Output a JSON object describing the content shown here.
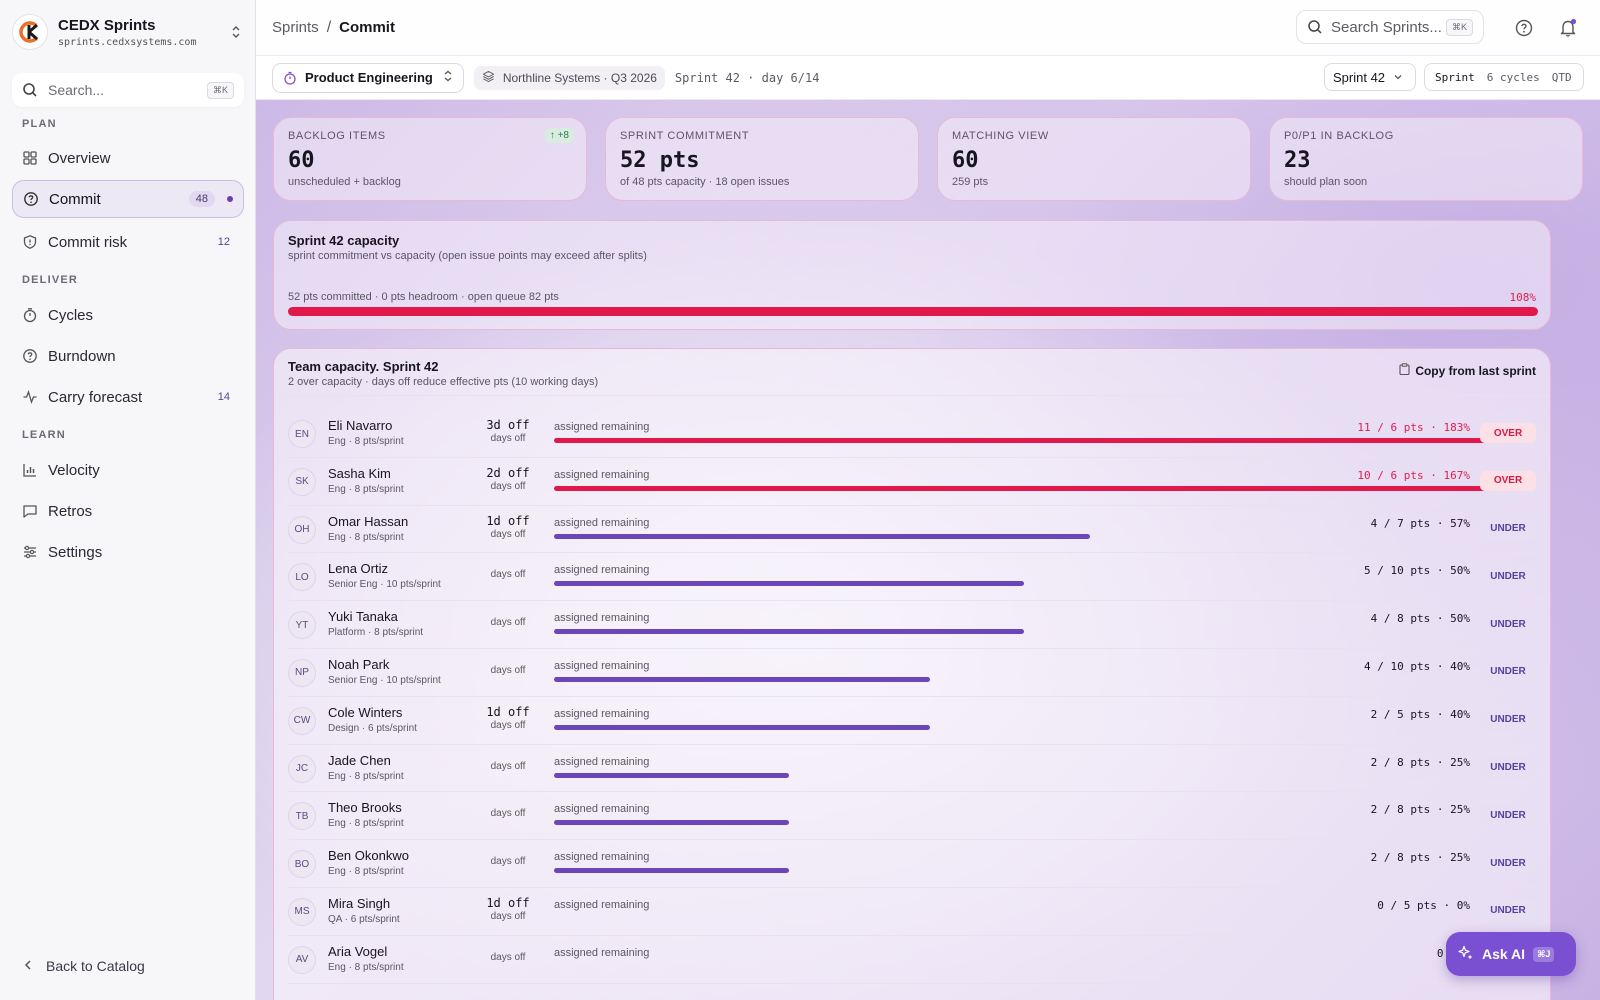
{
  "app": {
    "name": "CEDX Sprints",
    "url": "sprints.cedxsystems.com"
  },
  "sidebar": {
    "search_placeholder": "Search...",
    "search_shortcut": "⌘K",
    "sections": [
      {
        "label": "PLAN"
      },
      {
        "label": "DELIVER"
      },
      {
        "label": "LEARN"
      }
    ],
    "items": [
      {
        "label": "Overview",
        "icon": "grid-icon"
      },
      {
        "label": "Commit",
        "icon": "help-circle-icon",
        "count": "48",
        "active": true
      },
      {
        "label": "Commit risk",
        "icon": "shield-icon",
        "count": "12"
      },
      {
        "label": "Cycles",
        "icon": "timer-icon"
      },
      {
        "label": "Burndown",
        "icon": "help-circle-icon"
      },
      {
        "label": "Carry forecast",
        "icon": "activity-icon",
        "count": "14"
      },
      {
        "label": "Velocity",
        "icon": "bar-chart-icon"
      },
      {
        "label": "Retros",
        "icon": "message-square-icon"
      },
      {
        "label": "Settings",
        "icon": "sliders-icon"
      }
    ],
    "back_label": "Back to Catalog"
  },
  "topbar": {
    "breadcrumb_root": "Sprints",
    "breadcrumb_sep": "/",
    "breadcrumb_current": "Commit",
    "search_placeholder": "Search Sprints...",
    "search_shortcut": "⌘K"
  },
  "filterbar": {
    "team": "Product Engineering",
    "org": "Northline Systems · Q3 2026",
    "sprint_day": "Sprint 42 · day 6/14",
    "sprint_select": "Sprint 42",
    "segments": [
      "Sprint",
      "6 cycles",
      "QTD"
    ],
    "active_segment": "Sprint"
  },
  "stats": [
    {
      "label": "BACKLOG ITEMS",
      "value": "60",
      "sub": "unscheduled + backlog",
      "delta": "↑ +8"
    },
    {
      "label": "SPRINT COMMITMENT",
      "value": "52 pts",
      "sub": "of 48 pts capacity · 18 open issues"
    },
    {
      "label": "MATCHING VIEW",
      "value": "60",
      "sub": "259 pts"
    },
    {
      "label": "P0/P1 IN BACKLOG",
      "value": "23",
      "sub": "should plan soon"
    }
  ],
  "capacity": {
    "title": "Sprint 42 capacity",
    "subtitle": "sprint commitment vs capacity (open issue points may exceed after splits)",
    "meta": "52 pts committed · 0 pts headroom · open queue 82 pts",
    "pct_label": "108%",
    "fill_fraction": 1.0,
    "color": "#e0194a"
  },
  "team": {
    "title": "Team capacity. Sprint 42",
    "subtitle": "2 over capacity · days off reduce effective pts (10 working days)",
    "copy_label": "Copy from last sprint",
    "assigned_label": "assigned remaining",
    "days_off_label": "days off",
    "members": [
      {
        "initials": "EN",
        "name": "Eli Navarro",
        "role": "Eng · 8 pts/sprint",
        "off": "3d off",
        "ratio": "11 / 6 pts · 183%",
        "fill": 1.0,
        "status": "OVER"
      },
      {
        "initials": "SK",
        "name": "Sasha Kim",
        "role": "Eng · 8 pts/sprint",
        "off": "2d off",
        "ratio": "10 / 6 pts · 167%",
        "fill": 1.0,
        "status": "OVER"
      },
      {
        "initials": "OH",
        "name": "Omar Hassan",
        "role": "Eng · 8 pts/sprint",
        "off": "1d off",
        "ratio": "4 / 7 pts · 57%",
        "fill": 0.57,
        "status": "UNDER"
      },
      {
        "initials": "LO",
        "name": "Lena Ortiz",
        "role": "Senior Eng · 10 pts/sprint",
        "off": "",
        "ratio": "5 / 10 pts · 50%",
        "fill": 0.5,
        "status": "UNDER"
      },
      {
        "initials": "YT",
        "name": "Yuki Tanaka",
        "role": "Platform · 8 pts/sprint",
        "off": "",
        "ratio": "4 / 8 pts · 50%",
        "fill": 0.5,
        "status": "UNDER"
      },
      {
        "initials": "NP",
        "name": "Noah Park",
        "role": "Senior Eng · 10 pts/sprint",
        "off": "",
        "ratio": "4 / 10 pts · 40%",
        "fill": 0.4,
        "status": "UNDER"
      },
      {
        "initials": "CW",
        "name": "Cole Winters",
        "role": "Design · 6 pts/sprint",
        "off": "1d off",
        "ratio": "2 / 5 pts · 40%",
        "fill": 0.4,
        "status": "UNDER"
      },
      {
        "initials": "JC",
        "name": "Jade Chen",
        "role": "Eng · 8 pts/sprint",
        "off": "",
        "ratio": "2 / 8 pts · 25%",
        "fill": 0.25,
        "status": "UNDER"
      },
      {
        "initials": "TB",
        "name": "Theo Brooks",
        "role": "Eng · 8 pts/sprint",
        "off": "",
        "ratio": "2 / 8 pts · 25%",
        "fill": 0.25,
        "status": "UNDER"
      },
      {
        "initials": "BO",
        "name": "Ben Okonkwo",
        "role": "Eng · 8 pts/sprint",
        "off": "",
        "ratio": "2 / 8 pts · 25%",
        "fill": 0.25,
        "status": "UNDER"
      },
      {
        "initials": "MS",
        "name": "Mira Singh",
        "role": "QA · 6 pts/sprint",
        "off": "1d off",
        "ratio": "0 / 5 pts · 0%",
        "fill": 0,
        "status": "UNDER"
      },
      {
        "initials": "AV",
        "name": "Aria Vogel",
        "role": "Eng · 8 pts/sprint",
        "off": "",
        "ratio": "0 / 8",
        "fill": 0,
        "status": ""
      }
    ]
  },
  "ask_ai": {
    "label": "Ask AI",
    "shortcut": "⌘J"
  },
  "colors": {
    "accent": "#6c45b8",
    "over": "#e0194a",
    "brand": "#e8702a"
  }
}
